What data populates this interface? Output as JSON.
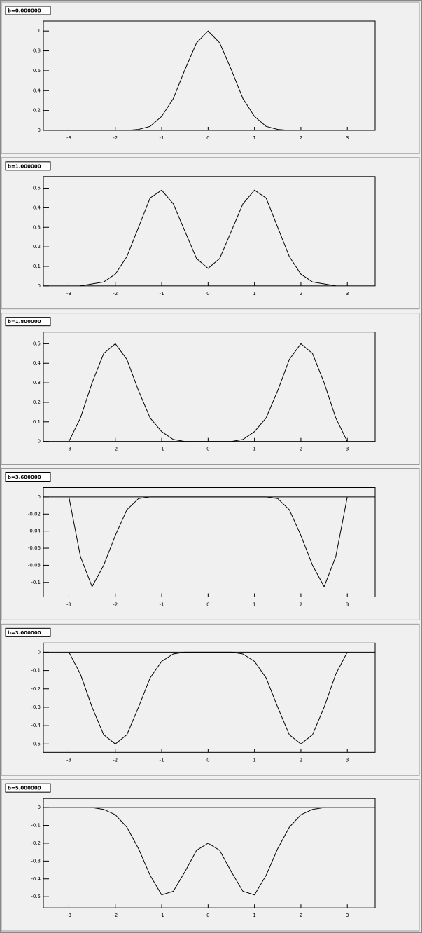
{
  "chart_data": [
    {
      "type": "line",
      "title": "b=0.000000",
      "x": [
        -1.75,
        -1.5,
        -1.25,
        -1,
        -0.75,
        -0.5,
        -0.25,
        0,
        0.25,
        0.5,
        0.75,
        1,
        1.25,
        1.5,
        1.75
      ],
      "values": [
        0,
        0.01,
        0.04,
        0.14,
        0.32,
        0.61,
        0.88,
        1,
        0.88,
        0.61,
        0.32,
        0.14,
        0.04,
        0.01,
        0
      ],
      "color": "#000000",
      "xlim": [
        -3.55,
        3.6
      ],
      "xticks": [
        -3,
        -2,
        -1,
        0,
        1,
        2,
        3
      ],
      "ylim": [
        0,
        1.1
      ],
      "yticks": [
        0,
        0.2,
        0.4,
        0.6,
        0.8,
        1
      ]
    },
    {
      "type": "line",
      "title": "b=1.000000",
      "x": [
        -2.75,
        -2.5,
        -2.25,
        -2,
        -1.75,
        -1.5,
        -1.25,
        -1,
        -0.75,
        -0.5,
        -0.25,
        0,
        0.25,
        0.5,
        0.75,
        1,
        1.25,
        1.5,
        1.75,
        2,
        2.25,
        2.5,
        2.75
      ],
      "values": [
        0,
        0.01,
        0.02,
        0.06,
        0.15,
        0.3,
        0.45,
        0.49,
        0.42,
        0.28,
        0.14,
        0.09,
        0.14,
        0.28,
        0.42,
        0.49,
        0.45,
        0.3,
        0.15,
        0.06,
        0.02,
        0.01,
        0
      ],
      "color": "#000000",
      "xlim": [
        -3.55,
        3.6
      ],
      "xticks": [
        -3,
        -2,
        -1,
        0,
        1,
        2,
        3
      ],
      "ylim": [
        0,
        0.56
      ],
      "yticks": [
        0,
        0.1,
        0.2,
        0.3,
        0.4,
        0.5
      ]
    },
    {
      "type": "line",
      "title": "b=1.800000",
      "x": [
        -3,
        -2.75,
        -2.5,
        -2.25,
        -2,
        -1.75,
        -1.5,
        -1.25,
        -1,
        -0.75,
        -0.5,
        -0.25,
        0,
        0.25,
        0.5,
        0.75,
        1,
        1.25,
        1.5,
        1.75,
        2,
        2.25,
        2.5,
        2.75,
        3
      ],
      "values": [
        0,
        0.12,
        0.3,
        0.45,
        0.5,
        0.42,
        0.26,
        0.12,
        0.05,
        0.01,
        0,
        0,
        0,
        0,
        0,
        0.01,
        0.05,
        0.12,
        0.26,
        0.42,
        0.5,
        0.45,
        0.3,
        0.12,
        0
      ],
      "color": "#000000",
      "xlim": [
        -3.55,
        3.6
      ],
      "xticks": [
        -3,
        -2,
        -1,
        0,
        1,
        2,
        3
      ],
      "ylim": [
        0,
        0.56
      ],
      "yticks": [
        0,
        0.1,
        0.2,
        0.3,
        0.4,
        0.5
      ]
    },
    {
      "type": "line",
      "title": "b=3.600000",
      "x": [
        -3,
        -2.75,
        -2.5,
        -2.25,
        -2,
        -1.75,
        -1.5,
        -1.25,
        -1,
        -0.5,
        0,
        0.5,
        1,
        1.25,
        1.5,
        1.75,
        2,
        2.25,
        2.5,
        2.75,
        3
      ],
      "values": [
        0,
        -0.07,
        -0.105,
        -0.08,
        -0.045,
        -0.015,
        -0.002,
        0,
        0,
        0,
        0,
        0,
        0,
        0,
        -0.002,
        -0.015,
        -0.045,
        -0.08,
        -0.105,
        -0.07,
        0
      ],
      "color": "#000000",
      "xlim": [
        -3.55,
        3.6
      ],
      "xticks": [
        -3,
        -2,
        -1,
        0,
        1,
        2,
        3
      ],
      "ylim": [
        -0.117,
        0.011
      ],
      "yticks": [
        0,
        -0.02,
        -0.04,
        -0.06,
        -0.08,
        -0.1
      ]
    },
    {
      "type": "line",
      "title": "b=3.000000",
      "x": [
        -3,
        -2.75,
        -2.5,
        -2.25,
        -2,
        -1.75,
        -1.5,
        -1.25,
        -1,
        -0.75,
        -0.5,
        0,
        0.5,
        0.75,
        1,
        1.25,
        1.5,
        1.75,
        2,
        2.25,
        2.5,
        2.75,
        3
      ],
      "values": [
        0,
        -0.12,
        -0.3,
        -0.45,
        -0.5,
        -0.45,
        -0.3,
        -0.14,
        -0.05,
        -0.01,
        0,
        0,
        0,
        -0.01,
        -0.05,
        -0.14,
        -0.3,
        -0.45,
        -0.5,
        -0.45,
        -0.3,
        -0.12,
        0
      ],
      "color": "#000000",
      "xlim": [
        -3.55,
        3.6
      ],
      "xticks": [
        -3,
        -2,
        -1,
        0,
        1,
        2,
        3
      ],
      "ylim": [
        -0.546,
        0.05
      ],
      "yticks": [
        0,
        -0.1,
        -0.2,
        -0.3,
        -0.4,
        -0.5
      ]
    },
    {
      "type": "line",
      "title": "b=5.000000",
      "x": [
        -2.5,
        -2.25,
        -2,
        -1.75,
        -1.5,
        -1.25,
        -1,
        -0.75,
        -0.5,
        -0.25,
        0,
        0.25,
        0.5,
        0.75,
        1,
        1.25,
        1.5,
        1.75,
        2,
        2.25,
        2.5
      ],
      "values": [
        0,
        -0.01,
        -0.04,
        -0.11,
        -0.23,
        -0.38,
        -0.49,
        -0.47,
        -0.36,
        -0.24,
        -0.2,
        -0.24,
        -0.36,
        -0.47,
        -0.49,
        -0.38,
        -0.23,
        -0.11,
        -0.04,
        -0.01,
        0
      ],
      "color": "#000000",
      "xlim": [
        -3.55,
        3.6
      ],
      "xticks": [
        -3,
        -2,
        -1,
        0,
        1,
        2,
        3
      ],
      "ylim": [
        -0.563,
        0.051
      ],
      "yticks": [
        0,
        -0.1,
        -0.2,
        -0.3,
        -0.4,
        -0.5
      ]
    }
  ]
}
